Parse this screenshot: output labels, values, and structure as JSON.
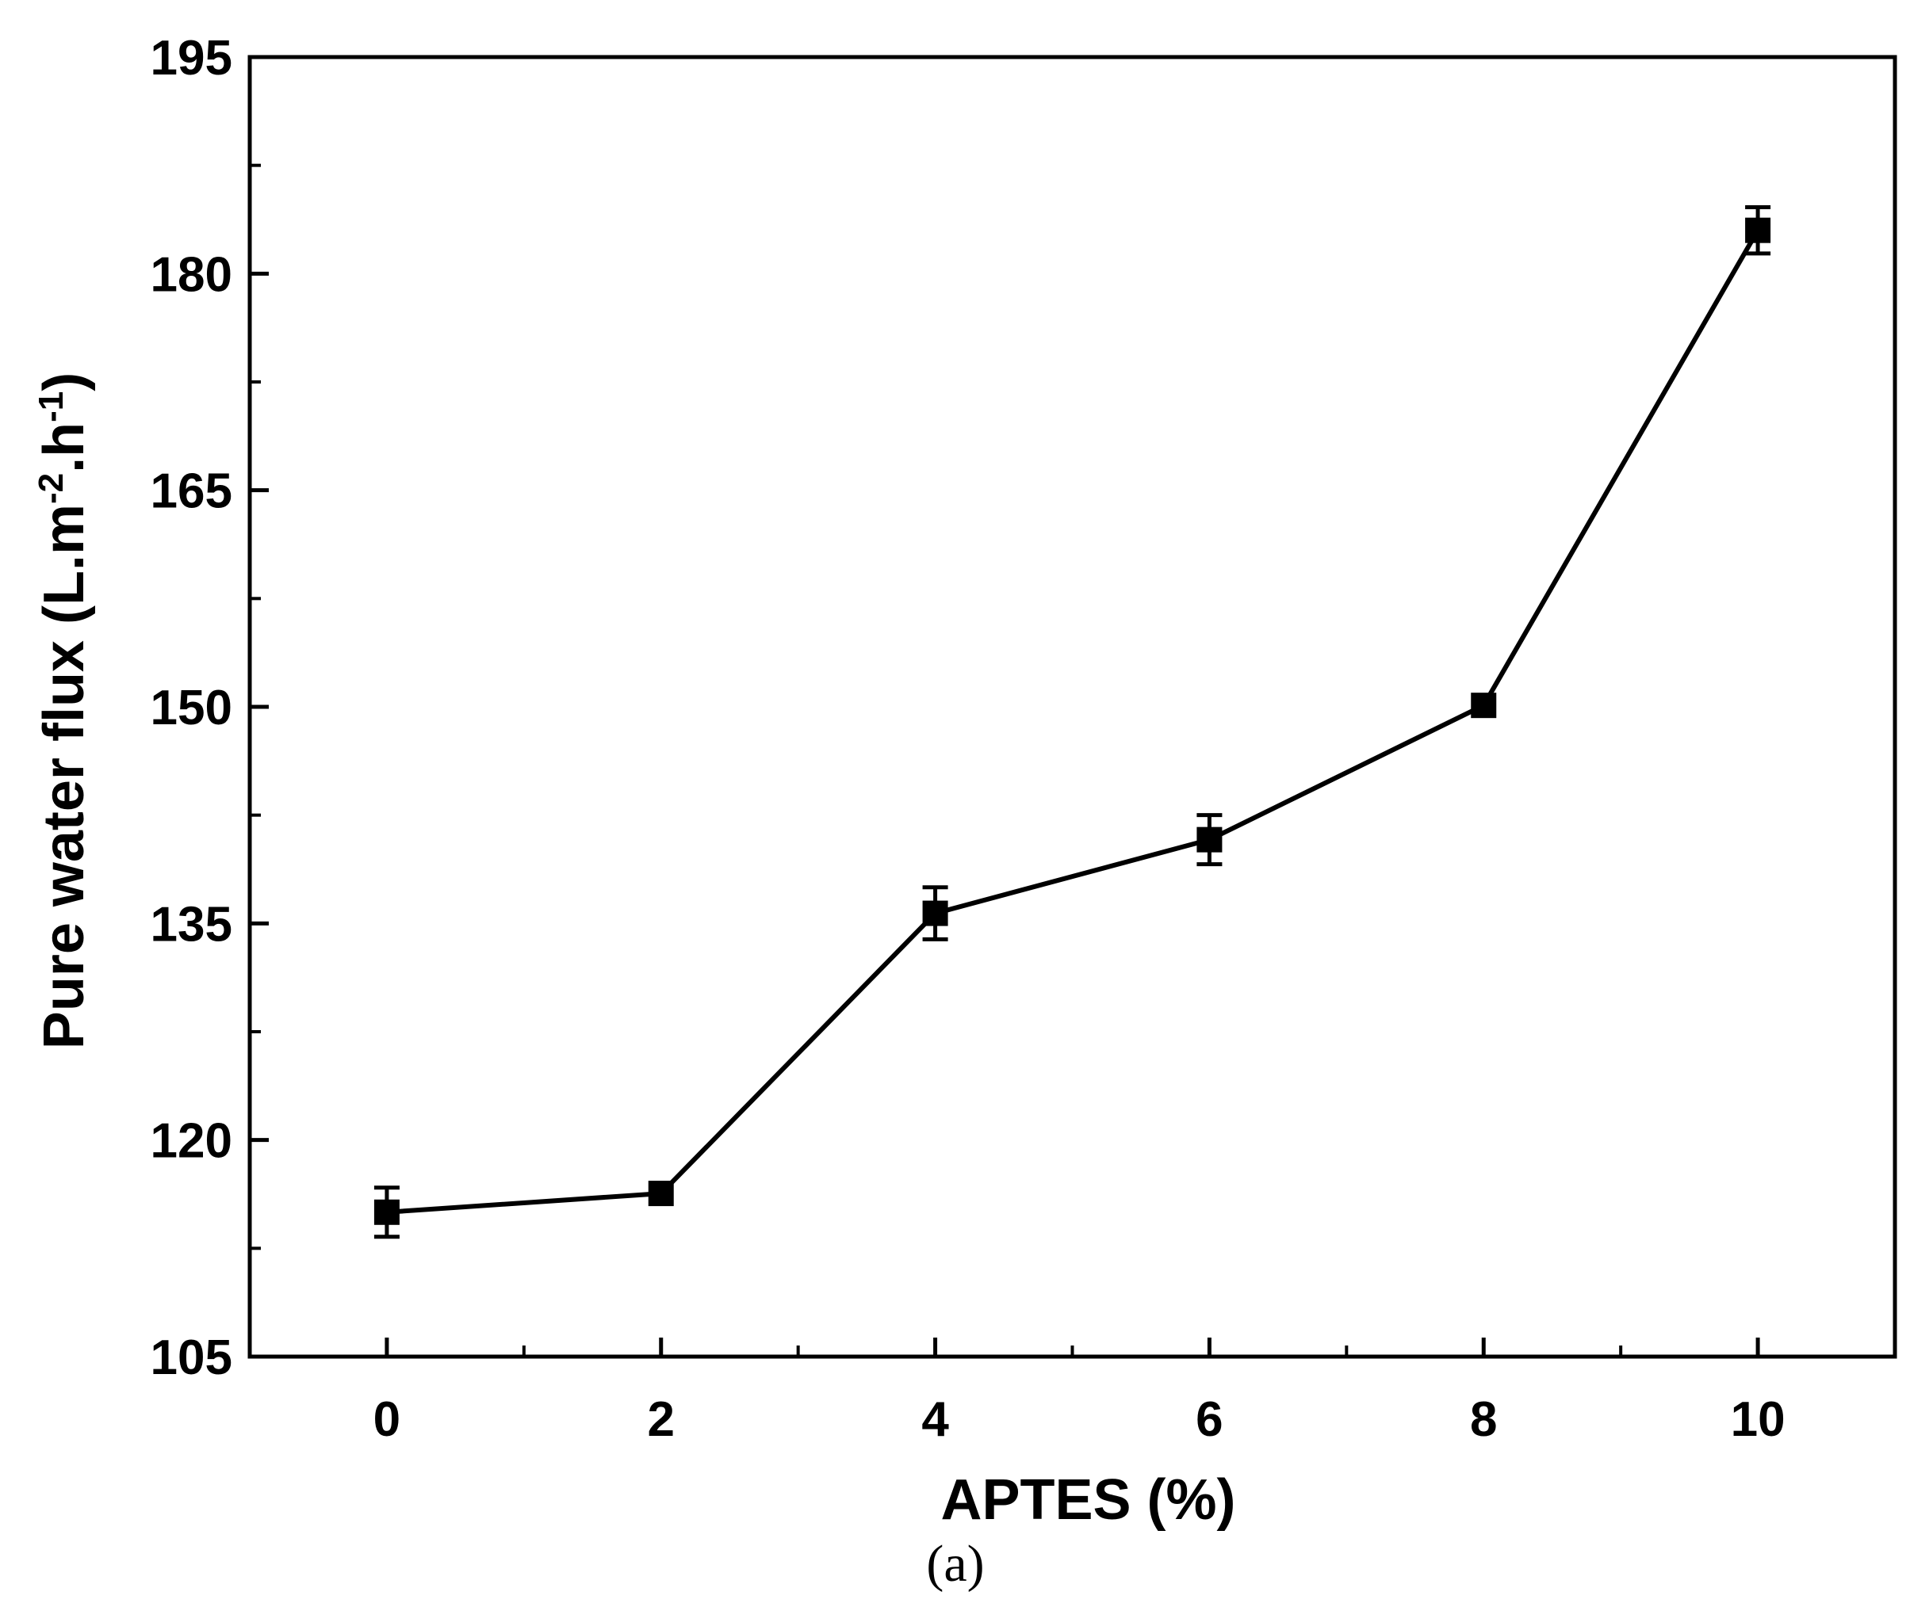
{
  "chart_data": {
    "type": "line",
    "xlabel": "APTES (%)",
    "ylabel_parts": [
      "Pure water flux  (L.m",
      "-2",
      ".h",
      "-1",
      ")"
    ],
    "caption": "(a)",
    "xlim": [
      -1,
      11
    ],
    "ylim": [
      105,
      195
    ],
    "x_ticks": [
      0,
      2,
      4,
      6,
      8,
      10
    ],
    "x_minor_ticks": [
      1,
      3,
      5,
      7,
      9
    ],
    "y_ticks": [
      105,
      120,
      135,
      150,
      165,
      180,
      195
    ],
    "y_minor_ticks": [
      112.5,
      127.5,
      142.5,
      157.5,
      172.5,
      187.5
    ],
    "grid": false,
    "series": [
      {
        "marker": "square",
        "color": "#000000",
        "x": [
          0,
          2,
          4,
          6,
          8,
          10
        ],
        "y": [
          115,
          116.3,
          135.7,
          140.8,
          150.1,
          183
        ],
        "error": [
          1.7,
          0.3,
          1.8,
          1.7,
          0.3,
          1.6
        ]
      }
    ]
  }
}
